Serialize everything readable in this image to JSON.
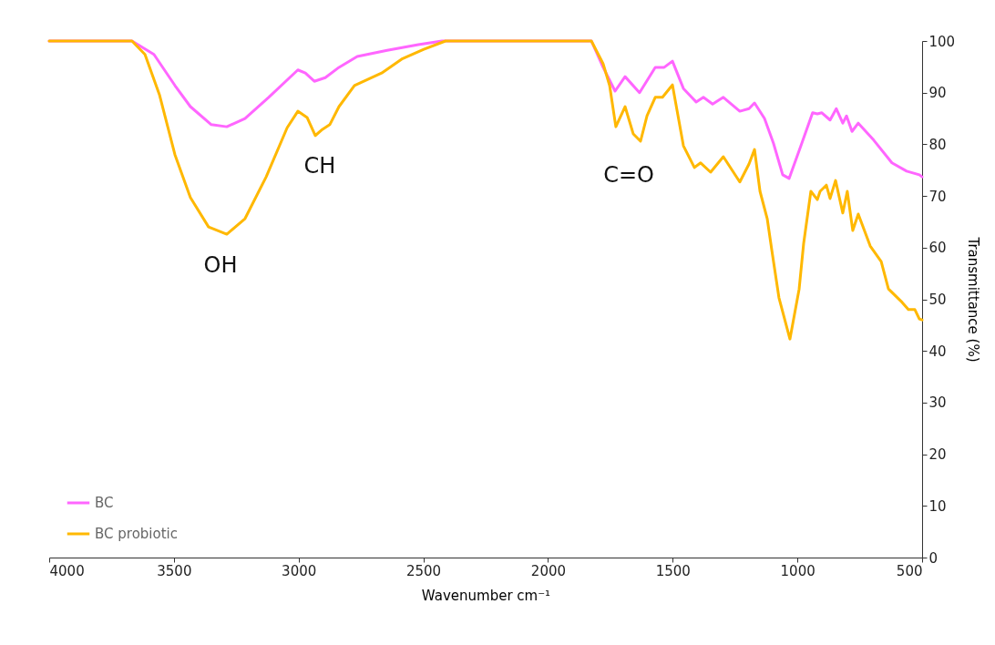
{
  "chart_data": {
    "type": "line",
    "xlabel": "Wavenumber cm⁻¹",
    "ylabel": "Transmittance (%)",
    "xlim": [
      4000,
      500
    ],
    "xticks": [
      4000,
      3500,
      3000,
      2500,
      2000,
      1500,
      1000,
      500
    ],
    "ylim": [
      0,
      100
    ],
    "yticks": [
      0,
      10,
      20,
      30,
      40,
      50,
      60,
      70,
      80,
      90,
      100
    ],
    "grid": false,
    "legend": "bottom left",
    "line_style": "solid",
    "annotations": [
      "OH",
      "CH",
      "C=O"
    ],
    "series": [
      {
        "name": "BC",
        "color": "#ff66ff",
        "x": [
          4000,
          3668,
          3580,
          3496,
          3434,
          3350,
          3288,
          3215,
          3120,
          3003,
          2973,
          2937,
          2893,
          2838,
          2765,
          2645,
          2520,
          2425,
          1826,
          1779,
          1731,
          1691,
          1633,
          1570,
          1534,
          1501,
          1457,
          1406,
          1377,
          1340,
          1297,
          1231,
          1194,
          1172,
          1132,
          1096,
          1059,
          1033,
          986,
          939,
          920,
          902,
          869,
          844,
          818,
          803,
          781,
          756,
          694,
          621,
          562,
          511,
          500
        ],
        "values": [
          100,
          100,
          97.4,
          91.4,
          87.3,
          83.8,
          83.4,
          85.0,
          89.1,
          94.4,
          93.8,
          92.2,
          92.9,
          94.9,
          97.0,
          98.2,
          99.3,
          100,
          100,
          94.9,
          90.3,
          93.1,
          90.0,
          94.9,
          94.9,
          96.1,
          90.8,
          88.2,
          89.1,
          87.8,
          89.1,
          86.4,
          86.9,
          88.0,
          85.0,
          80.2,
          74.1,
          73.4,
          79.7,
          86.1,
          85.9,
          86.1,
          84.7,
          86.9,
          84.1,
          85.5,
          82.5,
          84.1,
          80.8,
          76.4,
          74.8,
          74.1,
          73.7
        ]
      },
      {
        "name": "BC probiotic",
        "color": "#ffb800",
        "x": [
          4000,
          3668,
          3616,
          3558,
          3496,
          3434,
          3361,
          3288,
          3215,
          3130,
          3046,
          3003,
          2966,
          2933,
          2904,
          2875,
          2838,
          2776,
          2667,
          2583,
          2498,
          2411,
          1826,
          1779,
          1753,
          1728,
          1691,
          1658,
          1629,
          1603,
          1570,
          1541,
          1501,
          1457,
          1413,
          1388,
          1348,
          1297,
          1231,
          1194,
          1172,
          1150,
          1121,
          1103,
          1074,
          1030,
          993,
          975,
          946,
          920,
          909,
          884,
          869,
          847,
          818,
          800,
          778,
          756,
          708,
          664,
          635,
          580,
          555,
          529,
          511,
          500
        ],
        "values": [
          100,
          100,
          97.4,
          89.6,
          78.0,
          69.7,
          64.0,
          62.6,
          65.6,
          73.7,
          83.2,
          86.4,
          85.2,
          81.7,
          82.9,
          83.8,
          87.3,
          91.4,
          93.8,
          96.6,
          98.4,
          100,
          100,
          95.6,
          91.4,
          83.4,
          87.3,
          82.0,
          80.6,
          85.5,
          89.1,
          89.1,
          91.5,
          79.7,
          75.5,
          76.4,
          74.6,
          77.6,
          72.7,
          76.2,
          79.0,
          70.9,
          65.6,
          59.6,
          50.3,
          42.3,
          52.0,
          60.8,
          70.9,
          69.3,
          70.9,
          72.1,
          69.5,
          73.0,
          66.7,
          70.9,
          63.3,
          66.5,
          60.3,
          57.3,
          52.0,
          49.4,
          48.0,
          48.0,
          46.2,
          46.0
        ]
      }
    ]
  }
}
